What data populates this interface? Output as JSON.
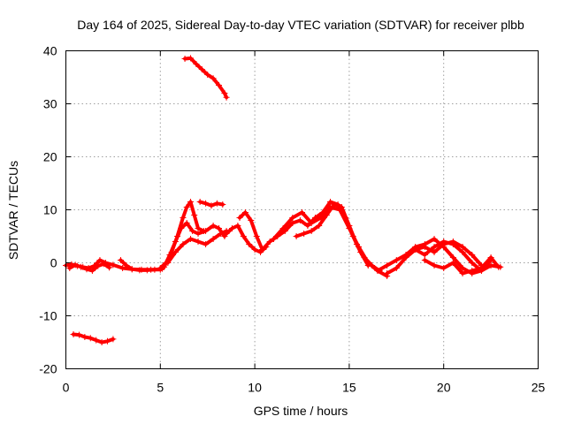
{
  "chart_data": {
    "type": "scatter",
    "title": "Day 164 of 2025, Sidereal Day-to-day VTEC variation (SDTVAR) for receiver plbb",
    "xlabel": "GPS time / hours",
    "ylabel": "SDTVAR / TECUs",
    "xlim": [
      0,
      25
    ],
    "ylim": [
      -20,
      40
    ],
    "xticks": [
      0,
      5,
      10,
      15,
      20,
      25
    ],
    "yticks": [
      -20,
      -10,
      0,
      10,
      20,
      30,
      40
    ],
    "grid": true,
    "marker": "+",
    "color": "#ff0000",
    "series": [
      {
        "name": "seg-early",
        "x": [
          0.0,
          0.3,
          0.6,
          0.9,
          1.2,
          1.5,
          1.8,
          2.1,
          2.5,
          3.0,
          3.5,
          4.0,
          4.5,
          5.0
        ],
        "y": [
          -0.5,
          -0.3,
          -0.6,
          -0.8,
          -1.0,
          -0.6,
          0.5,
          0.0,
          -0.4,
          -1.0,
          -1.2,
          -1.3,
          -1.3,
          -1.3
        ]
      },
      {
        "name": "seg-early-b",
        "x": [
          0.2,
          0.5,
          0.8,
          1.1,
          1.4,
          1.7,
          2.0,
          2.3
        ],
        "y": [
          -1.0,
          -0.4,
          -0.8,
          -1.2,
          -1.5,
          -0.6,
          -0.2,
          -0.9
        ]
      },
      {
        "name": "seg-early-c",
        "x": [
          2.9,
          3.2,
          3.5,
          3.9,
          4.3,
          4.7,
          5.1
        ],
        "y": [
          0.5,
          -0.5,
          -1.2,
          -1.4,
          -1.4,
          -1.3,
          -1.1
        ]
      },
      {
        "name": "seg-neg",
        "x": [
          0.4,
          0.7,
          1.0,
          1.3,
          1.6,
          1.9,
          2.2,
          2.5
        ],
        "y": [
          -13.5,
          -13.6,
          -14.0,
          -14.2,
          -14.6,
          -15.0,
          -14.8,
          -14.4
        ]
      },
      {
        "name": "seg-high",
        "x": [
          6.3,
          6.6,
          6.9,
          7.2,
          7.5,
          7.8,
          8.1,
          8.4,
          8.5
        ],
        "y": [
          38.5,
          38.6,
          37.5,
          36.5,
          35.5,
          34.8,
          33.5,
          32.0,
          31.2
        ]
      },
      {
        "name": "seg-rise-a",
        "x": [
          5.0,
          5.3,
          5.6,
          5.9,
          6.2,
          6.4,
          6.6,
          6.8,
          7.0,
          7.3
        ],
        "y": [
          -1.0,
          0.0,
          2.0,
          5.0,
          8.5,
          10.5,
          11.5,
          9.0,
          6.5,
          6.0
        ]
      },
      {
        "name": "seg-rise-b",
        "x": [
          5.2,
          5.5,
          5.8,
          6.1,
          6.4,
          6.7,
          7.0,
          7.4,
          7.8,
          8.1,
          8.4
        ],
        "y": [
          -0.8,
          1.5,
          4.0,
          6.5,
          7.5,
          6.0,
          5.5,
          6.0,
          7.0,
          6.5,
          5.0
        ]
      },
      {
        "name": "seg-rise-c",
        "x": [
          5.4,
          5.8,
          6.2,
          6.6,
          7.0,
          7.4,
          7.8,
          8.2,
          8.5
        ],
        "y": [
          0.0,
          2.0,
          3.5,
          4.5,
          4.0,
          3.5,
          4.5,
          5.5,
          6.0
        ]
      },
      {
        "name": "seg-blip",
        "x": [
          7.1,
          7.4,
          7.7,
          8.0,
          8.3
        ],
        "y": [
          11.5,
          11.2,
          10.8,
          11.2,
          11.0
        ]
      },
      {
        "name": "seg-mid-a",
        "x": [
          8.5,
          8.8,
          9.1,
          9.4,
          9.7,
          10.0,
          10.3,
          10.6
        ],
        "y": [
          5.5,
          6.5,
          7.0,
          5.0,
          3.5,
          2.5,
          2.0,
          3.0
        ]
      },
      {
        "name": "seg-mid-b",
        "x": [
          9.2,
          9.5,
          9.8,
          10.1,
          10.4
        ],
        "y": [
          8.5,
          9.5,
          8.0,
          5.0,
          2.5
        ]
      },
      {
        "name": "seg-mid-c",
        "x": [
          10.4,
          10.8,
          11.2,
          11.6,
          12.0,
          12.4,
          12.8,
          13.2,
          13.6,
          14.0,
          14.4,
          14.8,
          15.2,
          15.6,
          16.0
        ],
        "y": [
          2.5,
          4.0,
          5.0,
          6.0,
          7.5,
          8.0,
          7.0,
          8.5,
          9.5,
          11.5,
          11.0,
          8.5,
          5.0,
          2.0,
          -0.5
        ]
      },
      {
        "name": "seg-mid-d",
        "x": [
          11.0,
          11.5,
          12.0,
          12.5,
          13.0,
          13.5,
          14.0,
          14.5,
          15.0,
          15.5,
          16.0,
          16.5,
          17.0
        ],
        "y": [
          4.5,
          6.5,
          8.5,
          9.5,
          7.5,
          8.5,
          10.5,
          10.0,
          6.5,
          3.0,
          0.0,
          -1.5,
          -2.5
        ]
      },
      {
        "name": "seg-mid-e",
        "x": [
          12.2,
          12.6,
          13.0,
          13.4,
          13.8,
          14.2,
          14.6,
          15.0,
          15.4,
          15.8,
          16.2,
          16.6
        ],
        "y": [
          5.0,
          5.5,
          6.0,
          7.0,
          9.0,
          11.0,
          10.5,
          7.0,
          3.5,
          1.0,
          -0.5,
          -1.5
        ]
      },
      {
        "name": "seg-late-a",
        "x": [
          16.5,
          17.0,
          17.5,
          18.0,
          18.5,
          19.0,
          19.5,
          20.0,
          20.5,
          21.0,
          21.5,
          22.0,
          22.5,
          23.0
        ],
        "y": [
          -1.5,
          -0.5,
          0.5,
          1.5,
          3.0,
          3.5,
          4.5,
          3.0,
          1.0,
          -1.0,
          -2.0,
          -1.5,
          -0.5,
          -0.8
        ]
      },
      {
        "name": "seg-late-b",
        "x": [
          17.0,
          17.5,
          18.0,
          18.5,
          19.0,
          19.5,
          20.0,
          20.5,
          21.0,
          21.5,
          22.0,
          22.5
        ],
        "y": [
          -2.0,
          -1.0,
          1.0,
          2.5,
          1.5,
          3.0,
          4.0,
          3.5,
          2.0,
          0.0,
          -1.5,
          0.5
        ]
      },
      {
        "name": "seg-late-c",
        "x": [
          18.0,
          18.5,
          19.0,
          19.5,
          20.0,
          20.5,
          21.0,
          21.5,
          22.0
        ],
        "y": [
          1.0,
          2.5,
          3.0,
          2.0,
          3.5,
          4.0,
          3.0,
          1.5,
          -0.5
        ]
      },
      {
        "name": "seg-late-d",
        "x": [
          19.0,
          19.5,
          20.0,
          20.5,
          21.0,
          21.5,
          22.0,
          22.5,
          22.9
        ],
        "y": [
          0.5,
          -0.5,
          -1.0,
          0.0,
          -2.0,
          -1.5,
          -1.0,
          1.0,
          -0.8
        ]
      }
    ]
  }
}
